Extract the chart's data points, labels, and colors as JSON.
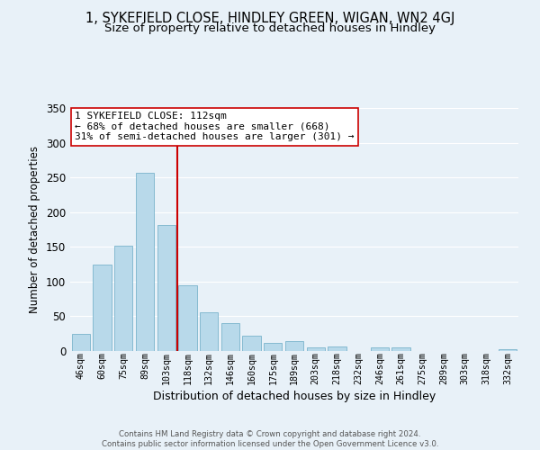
{
  "title1": "1, SYKEFIELD CLOSE, HINDLEY GREEN, WIGAN, WN2 4GJ",
  "title2": "Size of property relative to detached houses in Hindley",
  "xlabel": "Distribution of detached houses by size in Hindley",
  "ylabel": "Number of detached properties",
  "bar_labels": [
    "46sqm",
    "60sqm",
    "75sqm",
    "89sqm",
    "103sqm",
    "118sqm",
    "132sqm",
    "146sqm",
    "160sqm",
    "175sqm",
    "189sqm",
    "203sqm",
    "218sqm",
    "232sqm",
    "246sqm",
    "261sqm",
    "275sqm",
    "289sqm",
    "303sqm",
    "318sqm",
    "332sqm"
  ],
  "bar_values": [
    24,
    124,
    152,
    257,
    181,
    95,
    56,
    40,
    22,
    12,
    14,
    5,
    7,
    0,
    5,
    5,
    0,
    0,
    0,
    0,
    2
  ],
  "bar_color": "#b8d9ea",
  "bar_edgecolor": "#7ab4cc",
  "vline_color": "#cc0000",
  "annotation_title": "1 SYKEFIELD CLOSE: 112sqm",
  "annotation_line1": "← 68% of detached houses are smaller (668)",
  "annotation_line2": "31% of semi-detached houses are larger (301) →",
  "annotation_box_facecolor": "#ffffff",
  "annotation_box_edgecolor": "#cc0000",
  "ylim": [
    0,
    350
  ],
  "yticks": [
    0,
    50,
    100,
    150,
    200,
    250,
    300,
    350
  ],
  "footer1": "Contains HM Land Registry data © Crown copyright and database right 2024.",
  "footer2": "Contains public sector information licensed under the Open Government Licence v3.0.",
  "bg_color": "#e8f1f8",
  "grid_color": "#ffffff",
  "title1_fontsize": 10.5,
  "title2_fontsize": 9.5
}
